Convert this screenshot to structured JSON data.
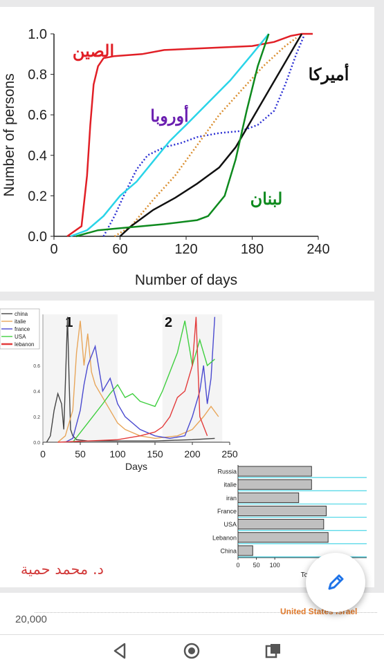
{
  "chart_data": [
    {
      "type": "line",
      "xlabel": "Number of days",
      "ylabel": "Number of persons",
      "xlim": [
        0,
        240
      ],
      "ylim": [
        0,
        1.0
      ],
      "x_ticks": [
        "0",
        "60",
        "120",
        "180",
        "240"
      ],
      "y_ticks": [
        "0.0",
        "0.2",
        "0.4",
        "0.6",
        "0.8",
        "1.0"
      ],
      "series": [
        {
          "name": "الصين",
          "color": "#e11f26",
          "style": "solid",
          "x": [
            12,
            25,
            30,
            33,
            36,
            40,
            45,
            55,
            80,
            100,
            140,
            180,
            200,
            215,
            225,
            235
          ],
          "y": [
            0,
            0.05,
            0.3,
            0.55,
            0.75,
            0.84,
            0.88,
            0.89,
            0.9,
            0.92,
            0.93,
            0.94,
            0.96,
            0.99,
            1.0,
            1.0
          ]
        },
        {
          "name": "أوروبا",
          "color": "#2b2fd3",
          "style": "dotted",
          "x": [
            45,
            55,
            65,
            75,
            85,
            100,
            115,
            130,
            150,
            170,
            185,
            200,
            210,
            220,
            227
          ],
          "y": [
            0,
            0.1,
            0.22,
            0.33,
            0.4,
            0.44,
            0.46,
            0.49,
            0.51,
            0.52,
            0.55,
            0.62,
            0.75,
            0.9,
            0.99
          ]
        },
        {
          "name": "",
          "color": "#2ad4e8",
          "style": "solid",
          "x": [
            15,
            30,
            45,
            60,
            75,
            90,
            105,
            120,
            140,
            160,
            180,
            195
          ],
          "y": [
            0,
            0.03,
            0.1,
            0.2,
            0.27,
            0.37,
            0.47,
            0.55,
            0.66,
            0.77,
            0.9,
            1.0
          ]
        },
        {
          "name": "",
          "color": "#d98d2e",
          "style": "dotted",
          "x": [
            55,
            70,
            90,
            110,
            130,
            150,
            170,
            190,
            210,
            220
          ],
          "y": [
            0,
            0.05,
            0.18,
            0.3,
            0.45,
            0.6,
            0.72,
            0.84,
            0.94,
            0.98
          ]
        },
        {
          "name": "أميركا",
          "color": "#111111",
          "style": "solid",
          "x": [
            60,
            70,
            90,
            110,
            130,
            150,
            165,
            180,
            195,
            210,
            225
          ],
          "y": [
            0,
            0.05,
            0.13,
            0.19,
            0.26,
            0.34,
            0.44,
            0.58,
            0.72,
            0.86,
            1.0
          ]
        },
        {
          "name": "لبنان",
          "color": "#0e8a1e",
          "style": "solid",
          "x": [
            20,
            40,
            60,
            80,
            100,
            130,
            140,
            155,
            165,
            175,
            185,
            195
          ],
          "y": [
            0,
            0.03,
            0.04,
            0.05,
            0.06,
            0.08,
            0.1,
            0.2,
            0.38,
            0.62,
            0.84,
            1.0
          ]
        }
      ]
    },
    {
      "type": "line",
      "xlabel": "Days",
      "xlim": [
        0,
        250
      ],
      "ylim": [
        0,
        1.0
      ],
      "x_ticks": [
        "0",
        "50",
        "100",
        "150",
        "200",
        "250"
      ],
      "y_ticks": [
        "0.0",
        "0.2",
        "0.4",
        "0.6"
      ],
      "panel_labels": [
        "1",
        "2"
      ],
      "legend": [
        "china",
        "italie",
        "france",
        "USA",
        "lebanon"
      ],
      "series": [
        {
          "name": "china",
          "color": "#444444",
          "x": [
            5,
            10,
            15,
            20,
            25,
            28,
            30,
            33,
            35,
            37,
            40,
            45,
            60,
            100,
            150,
            200,
            230
          ],
          "y": [
            0,
            0.05,
            0.25,
            0.38,
            0.3,
            0.1,
            0.45,
            0.98,
            0.5,
            0.1,
            0.05,
            0.02,
            0.01,
            0.01,
            0.01,
            0.02,
            0.03
          ]
        },
        {
          "name": "italie",
          "color": "#e8a65a",
          "x": [
            20,
            30,
            40,
            45,
            50,
            55,
            60,
            65,
            70,
            80,
            90,
            100,
            110,
            130,
            150,
            180,
            200,
            215,
            225,
            235
          ],
          "y": [
            0,
            0.05,
            0.25,
            0.7,
            0.95,
            0.6,
            0.85,
            0.55,
            0.45,
            0.35,
            0.25,
            0.15,
            0.1,
            0.05,
            0.03,
            0.05,
            0.1,
            0.2,
            0.28,
            0.2
          ]
        },
        {
          "name": "france",
          "color": "#4a4ad0",
          "x": [
            30,
            40,
            50,
            55,
            60,
            70,
            80,
            90,
            100,
            110,
            130,
            150,
            170,
            190,
            200,
            210,
            215,
            220,
            225,
            230
          ],
          "y": [
            0,
            0.03,
            0.25,
            0.45,
            0.6,
            0.75,
            0.4,
            0.5,
            0.3,
            0.2,
            0.1,
            0.05,
            0.03,
            0.05,
            0.2,
            0.4,
            0.6,
            0.3,
            0.5,
            0.98
          ]
        },
        {
          "name": "USA",
          "color": "#3fcf3f",
          "x": [
            40,
            60,
            80,
            90,
            100,
            110,
            120,
            130,
            140,
            150,
            160,
            170,
            180,
            190,
            200,
            210,
            220,
            230
          ],
          "y": [
            0,
            0.15,
            0.3,
            0.38,
            0.45,
            0.35,
            0.38,
            0.32,
            0.3,
            0.28,
            0.4,
            0.55,
            0.7,
            0.95,
            0.6,
            0.8,
            0.6,
            0.65
          ]
        },
        {
          "name": "lebanon",
          "color": "#e33b3b",
          "x": [
            20,
            60,
            100,
            130,
            150,
            160,
            170,
            180,
            190,
            200,
            205,
            210,
            220
          ],
          "y": [
            0,
            0.01,
            0.02,
            0.05,
            0.08,
            0.12,
            0.2,
            0.35,
            0.4,
            0.6,
            0.98,
            0.2,
            0.05
          ]
        }
      ]
    },
    {
      "type": "bar",
      "orientation": "horizontal",
      "categories": [
        "Russia",
        "italie",
        "iran",
        "France",
        "USA",
        "Lebanon",
        "China"
      ],
      "values": [
        200,
        200,
        165,
        240,
        233,
        245,
        40
      ],
      "xlim": [
        0,
        350
      ],
      "x_ticks": [
        "0",
        "50",
        "100",
        "250"
      ],
      "xlabel": "Tc",
      "bar_color": "#c0c0c0",
      "line_color": "#4ad6e6"
    }
  ],
  "labels": {
    "china_ar": "الصين",
    "europe_ar": "أوروبا",
    "america_ar": "أميركا",
    "lebanon_ar": "لبنان",
    "author": "د. محمد حمية"
  },
  "bottom_strip": {
    "value": "20,000",
    "tag": "United States Israel"
  },
  "icons": {
    "fab": "edit-pencil-icon",
    "nav_back": "back-triangle-icon",
    "nav_home": "home-circle-icon",
    "nav_recent": "recent-apps-icon"
  }
}
